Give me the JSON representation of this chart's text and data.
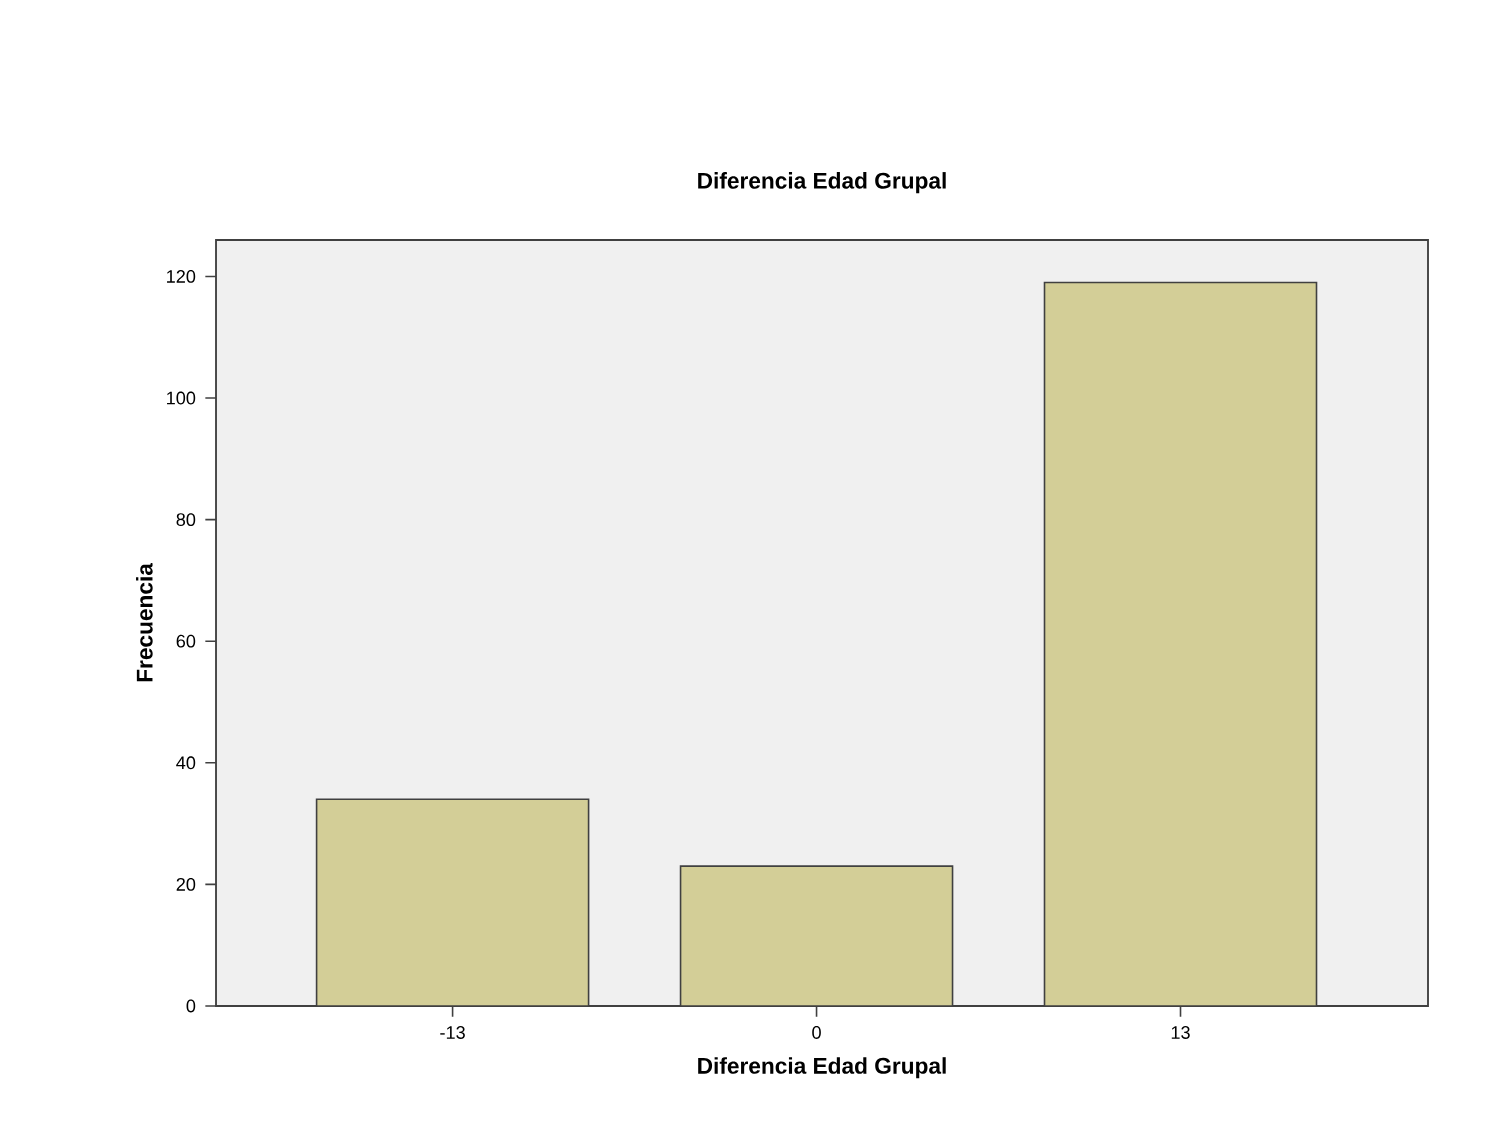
{
  "chart_data": {
    "type": "bar",
    "title": "Diferencia Edad Grupal",
    "xlabel": "Diferencia Edad Grupal",
    "ylabel": "Frecuencia",
    "categories": [
      "-13",
      "0",
      "13"
    ],
    "values": [
      34,
      23,
      119
    ],
    "color": "#d3ce97",
    "ylim": [
      0,
      126
    ],
    "yticks": [
      0,
      20,
      40,
      60,
      80,
      100,
      120
    ],
    "grid": false
  }
}
